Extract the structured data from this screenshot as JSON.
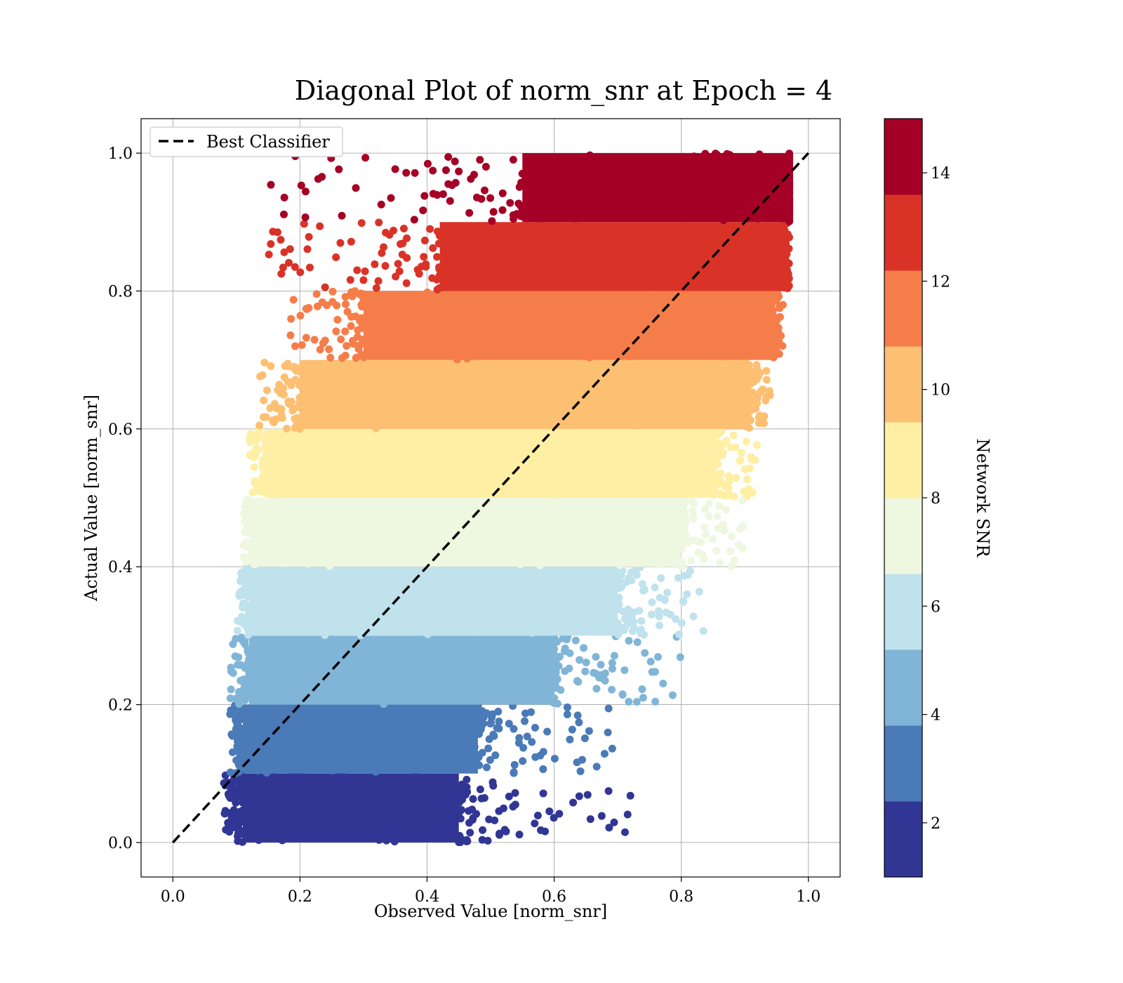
{
  "chart_data": {
    "type": "scatter",
    "title": "Diagonal Plot of norm_snr at Epoch = 4",
    "xlabel": "Observed Value [norm_snr]",
    "ylabel": "Actual Value [norm_snr]",
    "xlim": [
      -0.05,
      1.05
    ],
    "ylim": [
      -0.05,
      1.05
    ],
    "xticks": [
      "0.0",
      "0.2",
      "0.4",
      "0.6",
      "0.8",
      "1.0"
    ],
    "yticks": [
      "0.0",
      "0.2",
      "0.4",
      "0.6",
      "0.8",
      "1.0"
    ],
    "grid": true,
    "legend": {
      "placement": "top-left",
      "entries": [
        "Best Classifier"
      ]
    },
    "reference_line": {
      "name": "Best Classifier",
      "x": [
        0.0,
        1.0
      ],
      "y": [
        0.0,
        1.0
      ],
      "style": "dashed",
      "color": "#000000"
    },
    "colorbar": {
      "label": "Network SNR",
      "range": [
        1,
        15
      ],
      "ticks": [
        "2",
        "4",
        "6",
        "8",
        "10",
        "12",
        "14"
      ],
      "colors": [
        "#313695",
        "#4a7ab7",
        "#81b5d7",
        "#bfe2ed",
        "#eef7e0",
        "#feefa4",
        "#fdbf71",
        "#f57d4a",
        "#d93328",
        "#a50026"
      ]
    },
    "bands": [
      {
        "actual": [
          0.0,
          0.1
        ],
        "observed_core": [
          0.11,
          0.45
        ],
        "observed_spread": [
          0.08,
          0.72
        ]
      },
      {
        "actual": [
          0.1,
          0.2
        ],
        "observed_core": [
          0.11,
          0.48
        ],
        "observed_spread": [
          0.09,
          0.7
        ]
      },
      {
        "actual": [
          0.2,
          0.3
        ],
        "observed_core": [
          0.12,
          0.6
        ],
        "observed_spread": [
          0.09,
          0.8
        ]
      },
      {
        "actual": [
          0.3,
          0.4
        ],
        "observed_core": [
          0.12,
          0.7
        ],
        "observed_spread": [
          0.1,
          0.84
        ]
      },
      {
        "actual": [
          0.4,
          0.5
        ],
        "observed_core": [
          0.13,
          0.8
        ],
        "observed_spread": [
          0.11,
          0.9
        ]
      },
      {
        "actual": [
          0.5,
          0.6
        ],
        "observed_core": [
          0.15,
          0.85
        ],
        "observed_spread": [
          0.12,
          0.92
        ]
      },
      {
        "actual": [
          0.6,
          0.7
        ],
        "observed_core": [
          0.2,
          0.9
        ],
        "observed_spread": [
          0.13,
          0.94
        ]
      },
      {
        "actual": [
          0.7,
          0.8
        ],
        "observed_core": [
          0.3,
          0.94
        ],
        "observed_spread": [
          0.17,
          0.96
        ]
      },
      {
        "actual": [
          0.8,
          0.9
        ],
        "observed_core": [
          0.42,
          0.96
        ],
        "observed_spread": [
          0.15,
          0.97
        ]
      },
      {
        "actual": [
          0.9,
          1.0
        ],
        "observed_core": [
          0.55,
          0.97
        ],
        "observed_spread": [
          0.14,
          0.97
        ]
      }
    ]
  }
}
